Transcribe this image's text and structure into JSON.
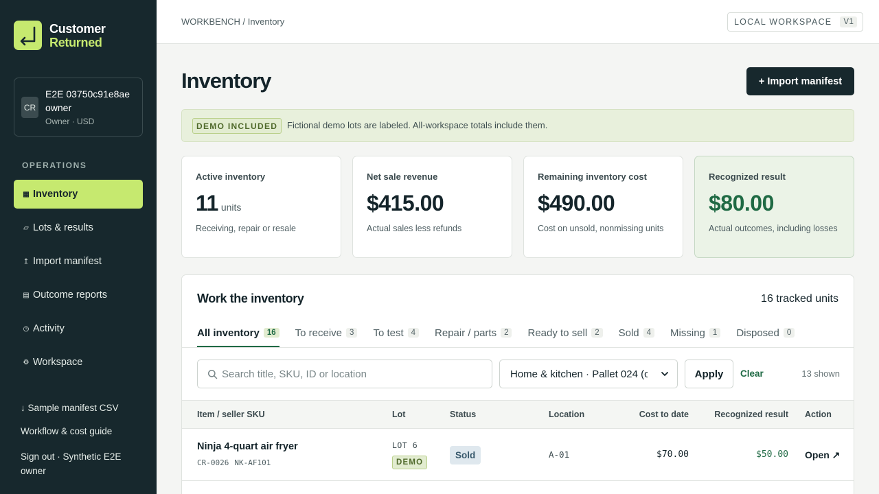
{
  "brand": {
    "line1": "Customer",
    "line2": "Returned",
    "accent": "#c6e96f"
  },
  "account": {
    "initials": "CR",
    "name": "E2E 03750c91e8ae owner",
    "role": "Owner · USD"
  },
  "nav": {
    "heading": "OPERATIONS",
    "items": [
      {
        "icon": "▦",
        "label": "Inventory",
        "active": true
      },
      {
        "icon": "▱",
        "label": "Lots & results"
      },
      {
        "icon": "↥",
        "label": "Import manifest"
      },
      {
        "icon": "▤",
        "label": "Outcome reports"
      },
      {
        "icon": "◷",
        "label": "Activity"
      },
      {
        "icon": "⚙",
        "label": "Workspace"
      }
    ]
  },
  "sidebar_links": {
    "sample_csv": "↓ Sample manifest CSV",
    "guide": "Workflow & cost guide",
    "signout": "Sign out · Synthetic E2E owner"
  },
  "topbar": {
    "breadcrumb": "WORKBENCH / Inventory",
    "workspace": "LOCAL WORKSPACE",
    "version": "V1"
  },
  "page": {
    "title": "Inventory",
    "import_button": "+ Import manifest"
  },
  "banner": {
    "tag": "DEMO INCLUDED",
    "text": "Fictional demo lots are labeled. All-workspace totals include them."
  },
  "stats": [
    {
      "label": "Active inventory",
      "value": "11",
      "unit": "units",
      "sub": "Receiving, repair or resale"
    },
    {
      "label": "Net sale revenue",
      "value": "$415.00",
      "sub": "Actual sales less refunds"
    },
    {
      "label": "Remaining inventory cost",
      "value": "$490.00",
      "sub": "Cost on unsold, nonmissing units"
    },
    {
      "label": "Recognized result",
      "value": "$80.00",
      "sub": "Actual outcomes, including losses"
    }
  ],
  "panel": {
    "title": "Work the inventory",
    "tracked": "16 tracked units",
    "tabs": [
      {
        "label": "All inventory",
        "count": "16",
        "active": true
      },
      {
        "label": "To receive",
        "count": "3"
      },
      {
        "label": "To test",
        "count": "4"
      },
      {
        "label": "Repair / parts",
        "count": "2"
      },
      {
        "label": "Ready to sell",
        "count": "2"
      },
      {
        "label": "Sold",
        "count": "4"
      },
      {
        "label": "Missing",
        "count": "1"
      },
      {
        "label": "Disposed",
        "count": "0"
      }
    ],
    "search_placeholder": "Search title, SKU, ID or location",
    "lot_filter": "Home & kitchen · Pallet 024 (c",
    "apply": "Apply",
    "clear": "Clear",
    "shown": "13 shown",
    "columns": {
      "item": "Item / seller SKU",
      "lot": "Lot",
      "status": "Status",
      "location": "Location",
      "cost": "Cost to date",
      "result": "Recognized result",
      "action": "Action"
    },
    "rows": [
      {
        "title": "Ninja 4-quart air fryer",
        "id": "CR-0026",
        "sku": "NK-AF101",
        "lot": "LOT 6",
        "lot_tag": "DEMO",
        "status": "Sold",
        "location": "A-01",
        "cost": "$70.00",
        "result": "$50.00",
        "action": "Open ↗"
      }
    ]
  }
}
